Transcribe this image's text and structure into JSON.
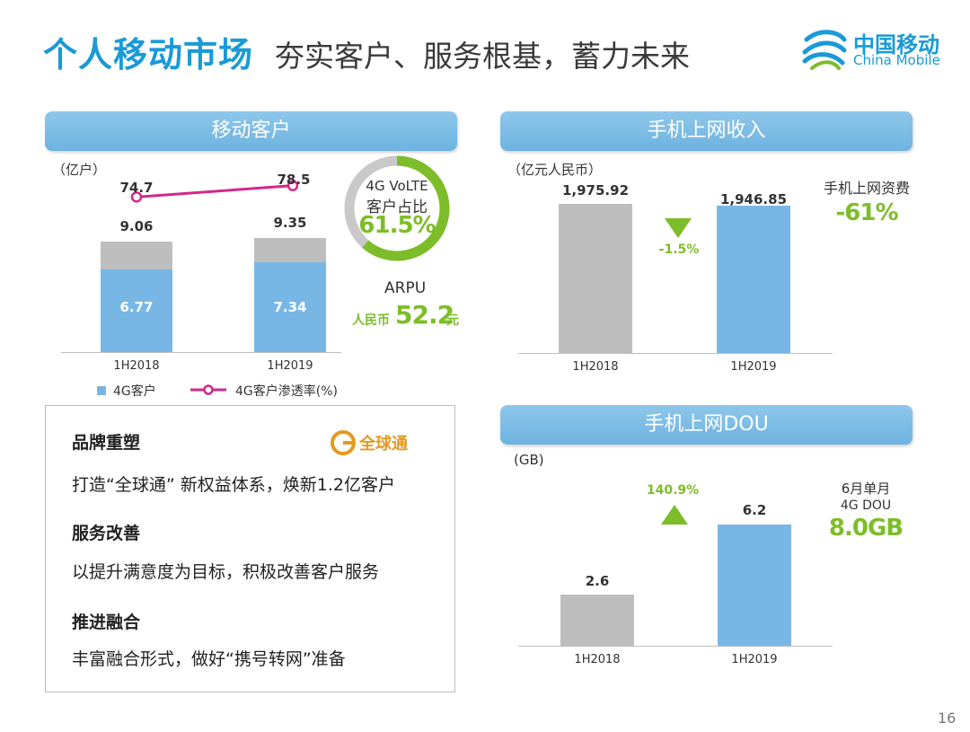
{
  "header": {
    "title": "个人移动市场",
    "subtitle": "夯实客户、服务根基，蓄力未来",
    "brand_cn": "中国移动",
    "brand_en": "China Mobile"
  },
  "colors": {
    "title_blue": "#1a9ad6",
    "banner_blue": "#7ebde6",
    "bar_gray": "#bebebe",
    "bar_blue": "#78b7e5",
    "accent_green": "#7dbd29",
    "line_magenta": "#d3288a"
  },
  "customers": {
    "banner": "移动客户",
    "unit": "（亿户）",
    "legend_4g": "4G客户",
    "legend_penetration": "4G客户渗透率(%)"
  },
  "volte": {
    "label_line1": "4G VoLTE",
    "label_line2": "客户占比",
    "value": "61.5%",
    "share": 0.615
  },
  "arpu": {
    "label": "ARPU",
    "prefix": "人民币",
    "value": "52.2",
    "suffix": "元"
  },
  "revenue": {
    "banner": "手机上网收入",
    "unit": "（亿元人民币）",
    "change": "-1.5%",
    "tariff_label": "手机上网资费",
    "tariff_change": "-61%"
  },
  "dou": {
    "banner": "手机上网DOU",
    "unit": "(GB)",
    "change": "140.9%",
    "june_line1": "6月单月",
    "june_line2": "4G DOU",
    "june_value": "8.0GB"
  },
  "brand_box": {
    "logo_text": "全球通",
    "items": [
      {
        "heading": "品牌重塑",
        "text": "打造“全球通” 新权益体系，焕新1.2亿客户"
      },
      {
        "heading": "服务改善",
        "text": "以提升满意度为目标，积极改善客户服务"
      },
      {
        "heading": "推进融合",
        "text": "丰富融合形式，做好“携号转网”准备"
      }
    ]
  },
  "page_number": "16",
  "chart_data": [
    {
      "type": "bar",
      "title": "移动客户",
      "ylabel": "亿户",
      "categories": [
        "1H2018",
        "1H2019"
      ],
      "totals": [
        9.06,
        9.35
      ],
      "total_labels": [
        "9.06",
        "9.35"
      ],
      "series": [
        {
          "name": "4G客户",
          "values": [
            6.77,
            7.34
          ],
          "labels": [
            "6.77",
            "7.34"
          ]
        }
      ],
      "line_series": {
        "name": "4G客户渗透率(%)",
        "values": [
          74.7,
          78.5
        ],
        "labels": [
          "74.7",
          "78.5"
        ]
      },
      "ylim": [
        0,
        11.2
      ],
      "legend": "bottom"
    },
    {
      "type": "bar",
      "title": "手机上网收入",
      "ylabel": "亿元人民币",
      "categories": [
        "1H2018",
        "1H2019"
      ],
      "values": [
        1975.92,
        1946.85
      ],
      "labels": [
        "1,975.92",
        "1,946.85"
      ],
      "ylim": [
        0,
        2350
      ]
    },
    {
      "type": "bar",
      "title": "手机上网DOU",
      "ylabel": "GB",
      "categories": [
        "1H2018",
        "1H2019"
      ],
      "values": [
        2.6,
        6.2
      ],
      "labels": [
        "2.6",
        "6.2"
      ],
      "ylim": [
        0,
        7.9
      ]
    }
  ]
}
